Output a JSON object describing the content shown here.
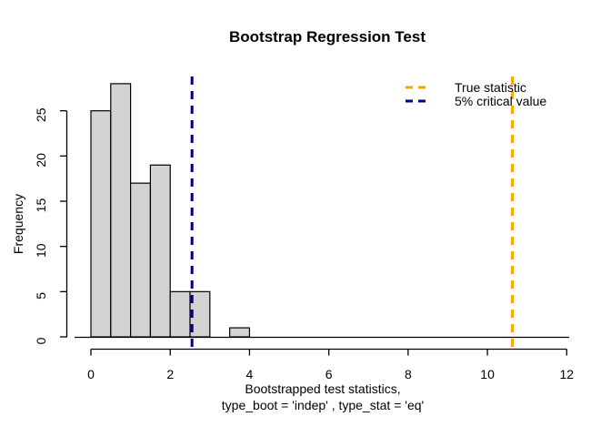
{
  "chart_data": {
    "type": "bar",
    "subtype": "histogram",
    "title": "Bootstrap Regression Test",
    "xlabel_lines": [
      "Bootstrapped test statistics,",
      "type_boot = 'indep' , type_stat = 'eq'"
    ],
    "ylabel": "Frequency",
    "bin_start": 0,
    "bin_width": 0.5,
    "counts": [
      25,
      28,
      17,
      19,
      5,
      5,
      0,
      1
    ],
    "x_ticks": [
      0,
      2,
      4,
      6,
      8,
      10,
      12
    ],
    "y_ticks": [
      0,
      5,
      10,
      15,
      20,
      25
    ],
    "xlim": [
      0,
      12
    ],
    "ylim": [
      0,
      28
    ],
    "grid": false,
    "bar_fill": "#D3D3D3",
    "bar_stroke": "#000000",
    "vlines": [
      {
        "id": "true-statistic-line",
        "value": 10.63,
        "color": "#FFA500",
        "style": "dashed",
        "label": "True statistic"
      },
      {
        "id": "critical-value-line",
        "value": 2.55,
        "color": "#000080",
        "style": "dashed",
        "label": "5% critical value"
      }
    ],
    "legend": {
      "position": "topright",
      "entries": [
        {
          "label": "True statistic",
          "color": "#FFA500",
          "style": "dashed"
        },
        {
          "label": "5% critical value",
          "color": "#000080",
          "style": "dashed"
        }
      ]
    }
  }
}
